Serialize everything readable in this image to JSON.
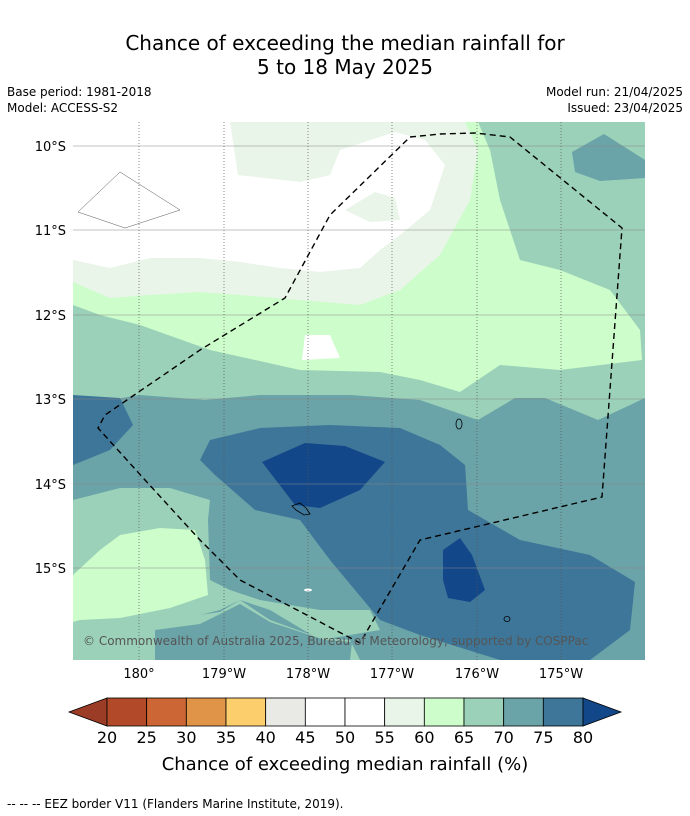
{
  "title": {
    "line1": "Chance of exceeding the median rainfall for",
    "line2": "5 to 18 May 2025"
  },
  "meta": {
    "base_period": "Base period: 1981-2018",
    "model": "Model: ACCESS-S2",
    "model_run": "Model run: 21/04/2025",
    "issued": "Issued: 23/04/2025"
  },
  "map": {
    "lat_labels": [
      "10°S",
      "11°S",
      "12°S",
      "13°S",
      "14°S",
      "15°S"
    ],
    "lon_labels": [
      "180°",
      "179°W",
      "178°W",
      "177°W",
      "176°W",
      "175°W"
    ],
    "copyright": "© Commonwealth of Australia 2025, Bureau of Meteorology, supported by COSPPac"
  },
  "colorbar": {
    "ticks": [
      "20",
      "25",
      "30",
      "35",
      "40",
      "45",
      "50",
      "55",
      "60",
      "65",
      "70",
      "75",
      "80"
    ],
    "colors": [
      "#9b3d26",
      "#b24a29",
      "#cd6635",
      "#e09448",
      "#fdce6c",
      "#e9e9e5",
      "#ffffff",
      "#ffffff",
      "#e9f5e8",
      "#ccfdca",
      "#9bd1b9",
      "#6aa3a8",
      "#3d7698",
      "#12488a"
    ],
    "label": "Chance of exceeding median rainfall (%)"
  },
  "footnote": "--  --  -- EEZ border V11 (Flanders Marine Institute, 2019)."
}
